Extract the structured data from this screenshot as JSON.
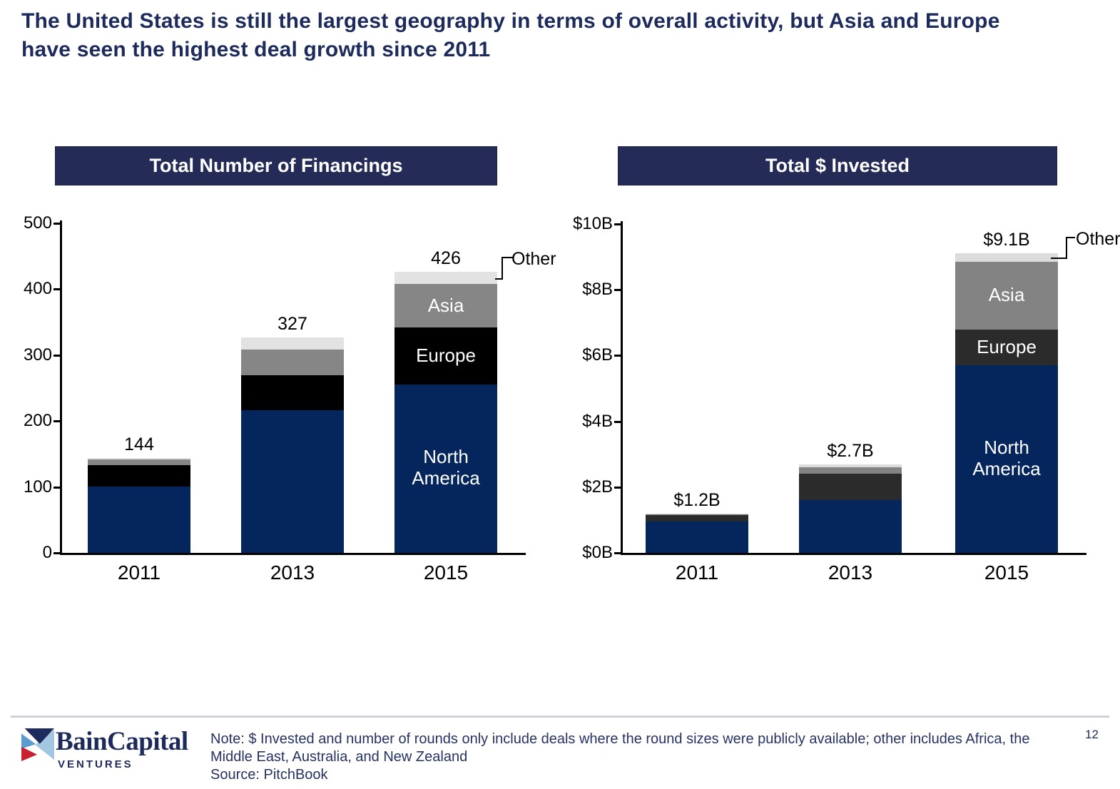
{
  "title": {
    "line1": "The United States is still the largest geography in terms of overall activity, but Asia and Europe",
    "line2": "have seen the highest deal growth since 2011"
  },
  "colors": {
    "header_navy": "#242b57",
    "title_navy": "#1d2a5c",
    "bar_navy": "#04265c",
    "europe_black": "#000000",
    "europe_charcoal": "#2b2b2b",
    "asia_gray": "#868686",
    "other_light_gray": "#e2e2e2",
    "logo_red": "#c8202f",
    "logo_blue": "#5b9bd0",
    "logo_light_blue": "#a3c6e1"
  },
  "chart_data": [
    {
      "type": "bar",
      "stacked": true,
      "title": "Total Number of Financings",
      "categories": [
        "2011",
        "2013",
        "2015"
      ],
      "series": [
        {
          "name": "North America",
          "color": "#04265c",
          "pattern": "solid",
          "values": [
            101,
            216,
            255
          ]
        },
        {
          "name": "Europe",
          "color": "#000000",
          "pattern": "solid",
          "values": [
            32,
            54,
            87
          ]
        },
        {
          "name": "Asia",
          "color": "#868686",
          "pattern": "dots",
          "values": [
            9,
            38,
            66
          ]
        },
        {
          "name": "Other",
          "color": "#e2e2e2",
          "pattern": "solid",
          "values": [
            2,
            19,
            18
          ]
        }
      ],
      "totals_labels": [
        "144",
        "327",
        "426"
      ],
      "ylim": [
        0,
        500
      ],
      "yticks": [
        "0",
        "100",
        "200",
        "300",
        "400",
        "500"
      ],
      "grid": "off",
      "legend": "none",
      "segment_labels_category": "2015",
      "other_callout": "Other"
    },
    {
      "type": "bar",
      "stacked": true,
      "title": "Total $ Invested",
      "categories": [
        "2011",
        "2013",
        "2015"
      ],
      "series": [
        {
          "name": "North America",
          "color": "#04265c",
          "pattern": "solid",
          "values": [
            0.95,
            1.6,
            5.7
          ]
        },
        {
          "name": "Europe",
          "color": "#2b2b2b",
          "pattern": "dots",
          "values": [
            0.2,
            0.8,
            1.1
          ]
        },
        {
          "name": "Asia",
          "color": "#838383",
          "pattern": "dots",
          "values": [
            0.03,
            0.2,
            2.05
          ]
        },
        {
          "name": "Other",
          "color": "#dcdcdc",
          "pattern": "solid",
          "values": [
            0.02,
            0.1,
            0.25
          ]
        }
      ],
      "totals_labels": [
        "$1.2B",
        "$2.7B",
        "$9.1B"
      ],
      "ylim": [
        0,
        10
      ],
      "yticks": [
        "$0B",
        "$2B",
        "$4B",
        "$6B",
        "$8B",
        "$10B"
      ],
      "grid": "off",
      "legend": "none",
      "segment_labels_category": "2015",
      "other_callout": "Other"
    }
  ],
  "footer": {
    "logo_primary": "BainCapital",
    "logo_secondary": "VENTURES",
    "note_line1": "Note: $ Invested and number of rounds only include deals where the round sizes were publicly available; other includes Africa, the",
    "note_line2": "Middle East, Australia, and New Zealand",
    "source": "Source: PitchBook",
    "page_number": "12"
  }
}
